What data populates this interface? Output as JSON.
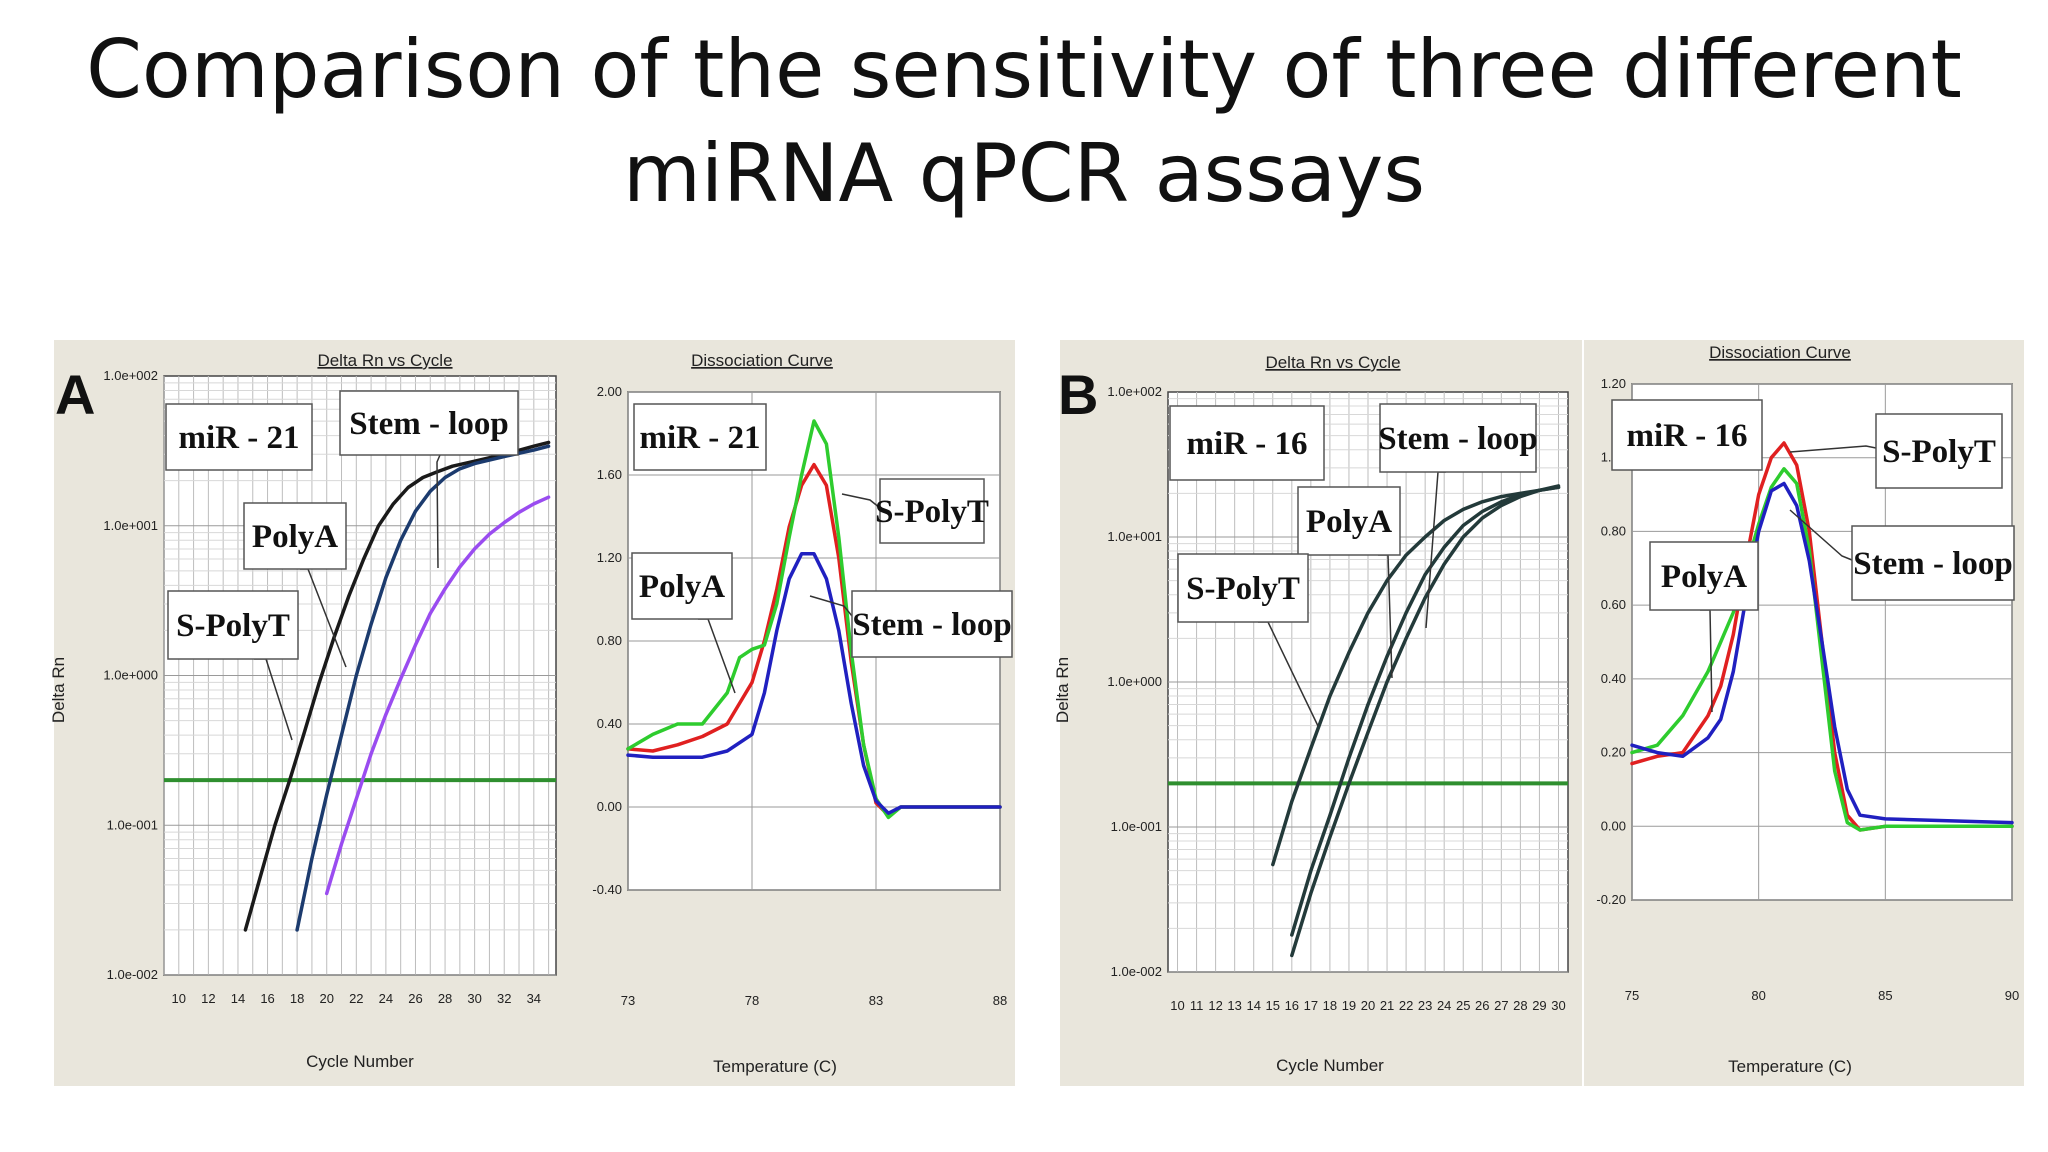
{
  "slide": {
    "title_line1": "Comparison of the sensitivity of three different",
    "title_line2": "miRNA qPCR assays"
  },
  "colors": {
    "background_panel": "#e9e6dc",
    "plot_bg": "#ffffff",
    "grid": "#bdbdbd",
    "threshold": "#2f8f2f",
    "s_polyt": "#e02020",
    "polya": "#2ecc2e",
    "stem_loop": "#2020c0",
    "amp_black": "#1a1a1a",
    "amp_dark": "#233a3a",
    "amp_purple": "#9a4cf0",
    "amp_darkblue": "#1c3b6e"
  },
  "chart_data": [
    {
      "id": "A-amp",
      "type": "line",
      "panel_letter": "A",
      "title": "Delta Rn vs Cycle",
      "xlabel": "Cycle Number",
      "ylabel": "Delta Rn",
      "xlim": [
        9,
        35.5
      ],
      "ylim": [
        0.01,
        100
      ],
      "yscale": "log",
      "xticks": [
        10,
        12,
        14,
        16,
        18,
        20,
        22,
        24,
        26,
        28,
        30,
        32,
        34
      ],
      "ytick_labels": [
        "1.0e-002",
        "1.0e-001",
        "1.0e+000",
        "1.0e+001",
        "1.0e+002"
      ],
      "ytick_values": [
        0.01,
        0.1,
        1,
        10,
        100
      ],
      "threshold": 0.2,
      "series": [
        {
          "color": "#1a1a1a",
          "x": [
            14.5,
            15.5,
            16.5,
            17.5,
            18.5,
            19.5,
            20.5,
            21.5,
            22.5,
            23.5,
            24.5,
            25.5,
            26.5,
            27.5,
            28.5,
            30,
            32,
            34,
            35
          ],
          "y": [
            0.02,
            0.045,
            0.1,
            0.2,
            0.42,
            0.9,
            1.8,
            3.4,
            6,
            10,
            14,
            18,
            21,
            23,
            25,
            27,
            30,
            34,
            36
          ]
        },
        {
          "color": "#1c3b6e",
          "x": [
            18,
            19,
            20,
            21,
            22,
            23,
            24,
            25,
            26,
            27,
            28,
            29,
            30,
            32,
            34,
            35
          ],
          "y": [
            0.02,
            0.06,
            0.16,
            0.4,
            1,
            2.2,
            4.5,
            8,
            12.5,
            17,
            21,
            24,
            26,
            29,
            32,
            34
          ]
        },
        {
          "color": "#9a4cf0",
          "x": [
            20,
            21,
            22,
            23,
            24,
            25,
            26,
            27,
            28,
            29,
            30,
            31,
            32,
            33,
            34,
            35
          ],
          "y": [
            0.035,
            0.075,
            0.15,
            0.3,
            0.55,
            0.95,
            1.6,
            2.6,
            3.8,
            5.3,
            7,
            8.8,
            10.5,
            12.3,
            14,
            15.5
          ]
        }
      ],
      "labels": [
        {
          "text": "miR - 21"
        },
        {
          "text": "Stem - loop"
        },
        {
          "text": "PolyA"
        },
        {
          "text": "S-PolyT"
        }
      ]
    },
    {
      "id": "A-diss",
      "type": "line",
      "title": "Dissociation Curve",
      "xlabel": "Temperature (C)",
      "xlim": [
        73,
        88
      ],
      "ylim": [
        -0.4,
        2.0
      ],
      "xticks": [
        73,
        78,
        83,
        88
      ],
      "xtick_labels": [
        "73",
        "78",
        "83",
        "88"
      ],
      "yticks": [
        -0.4,
        0,
        0.4,
        0.8,
        1.2,
        1.6,
        2.0
      ],
      "ytick_labels": [
        "-0.40",
        "0.00",
        "0.40",
        "0.80",
        "1.20",
        "1.60",
        "2.00"
      ],
      "series": [
        {
          "name": "S-PolyT",
          "color": "#e02020",
          "x": [
            73,
            74,
            75,
            76,
            77,
            78,
            78.5,
            79,
            79.5,
            80,
            80.5,
            81,
            81.5,
            82,
            82.5,
            83,
            83.5,
            84,
            85,
            88
          ],
          "y": [
            0.28,
            0.27,
            0.3,
            0.34,
            0.4,
            0.6,
            0.8,
            1.05,
            1.35,
            1.55,
            1.65,
            1.55,
            1.2,
            0.7,
            0.3,
            0.02,
            -0.04,
            0,
            0,
            0
          ]
        },
        {
          "name": "PolyA",
          "color": "#2ecc2e",
          "x": [
            73,
            74,
            75,
            76,
            77,
            77.5,
            78,
            78.5,
            79,
            79.5,
            80,
            80.5,
            81,
            81.5,
            82,
            82.5,
            83,
            83.5,
            84,
            85,
            88
          ],
          "y": [
            0.28,
            0.35,
            0.4,
            0.4,
            0.55,
            0.72,
            0.76,
            0.78,
            0.98,
            1.3,
            1.6,
            1.86,
            1.75,
            1.3,
            0.75,
            0.3,
            0.04,
            -0.05,
            0,
            0,
            0
          ]
        },
        {
          "name": "Stem - loop",
          "color": "#2020c0",
          "x": [
            73,
            74,
            75,
            76,
            77,
            78,
            78.5,
            79,
            79.5,
            80,
            80.5,
            81,
            81.5,
            82,
            82.5,
            83,
            83.5,
            84,
            85,
            88
          ],
          "y": [
            0.25,
            0.24,
            0.24,
            0.24,
            0.27,
            0.35,
            0.55,
            0.85,
            1.1,
            1.22,
            1.22,
            1.1,
            0.85,
            0.5,
            0.2,
            0.03,
            -0.03,
            0,
            0,
            0
          ]
        }
      ],
      "labels": [
        {
          "text": "miR - 21"
        },
        {
          "text": "S-PolyT"
        },
        {
          "text": "PolyA"
        },
        {
          "text": "Stem - loop"
        }
      ]
    },
    {
      "id": "B-amp",
      "type": "line",
      "panel_letter": "B",
      "title": "Delta Rn vs Cycle",
      "xlabel": "Cycle Number",
      "ylabel": "Delta Rn",
      "xlim": [
        9.5,
        30.5
      ],
      "ylim": [
        0.01,
        100
      ],
      "yscale": "log",
      "xticks": [
        10,
        11,
        12,
        13,
        14,
        15,
        16,
        17,
        18,
        19,
        20,
        21,
        22,
        23,
        24,
        25,
        26,
        27,
        28,
        29,
        30
      ],
      "ytick_labels": [
        "1.0e-002",
        "1.0e-001",
        "1.0e+000",
        "1.0e+001",
        "1.0e+002"
      ],
      "ytick_values": [
        0.01,
        0.1,
        1,
        10,
        100
      ],
      "threshold": 0.2,
      "series": [
        {
          "color": "#233a3a",
          "x": [
            15,
            16,
            17,
            18,
            19,
            20,
            21,
            22,
            23,
            24,
            25,
            26,
            27,
            28,
            29,
            30
          ],
          "y": [
            0.055,
            0.15,
            0.35,
            0.8,
            1.6,
            3,
            5,
            7.5,
            10,
            13,
            15.5,
            17.5,
            19,
            20,
            21,
            22
          ]
        },
        {
          "color": "#233a3a",
          "x": [
            16,
            17,
            18,
            19,
            20,
            21,
            22,
            23,
            24,
            25,
            26,
            27,
            28,
            29,
            30
          ],
          "y": [
            0.018,
            0.05,
            0.12,
            0.3,
            0.7,
            1.5,
            3,
            5.5,
            8.5,
            12,
            15,
            17.5,
            19.5,
            21,
            22
          ]
        },
        {
          "color": "#233a3a",
          "x": [
            16,
            17,
            18,
            19,
            20,
            21,
            22,
            23,
            24,
            25,
            26,
            27,
            28,
            29,
            30
          ],
          "y": [
            0.013,
            0.035,
            0.085,
            0.2,
            0.45,
            1,
            2,
            3.8,
            6.5,
            10,
            13.5,
            16.5,
            19,
            21,
            22.5
          ]
        }
      ],
      "labels": [
        {
          "text": "miR - 16"
        },
        {
          "text": "Stem - loop"
        },
        {
          "text": "PolyA"
        },
        {
          "text": "S-PolyT"
        }
      ]
    },
    {
      "id": "B-diss",
      "type": "line",
      "title": "Dissociation Curve",
      "xlabel": "Temperature (C)",
      "xlim": [
        75,
        90
      ],
      "ylim": [
        -0.2,
        1.2
      ],
      "xticks": [
        75,
        80,
        85,
        90
      ],
      "xtick_labels": [
        "75",
        "80",
        "85",
        "90"
      ],
      "yticks": [
        -0.2,
        0,
        0.2,
        0.4,
        0.6,
        0.8,
        1.0,
        1.2
      ],
      "ytick_labels": [
        "-0.20",
        "0.00",
        "0.20",
        "0.40",
        "0.60",
        "0.80",
        "1.00",
        "1.20"
      ],
      "series": [
        {
          "name": "S-PolyT",
          "color": "#e02020",
          "x": [
            75,
            76,
            77,
            78,
            78.5,
            79,
            79.5,
            80,
            80.5,
            81,
            81.5,
            82,
            82.5,
            83,
            83.5,
            84,
            85,
            90
          ],
          "y": [
            0.17,
            0.19,
            0.2,
            0.3,
            0.38,
            0.52,
            0.72,
            0.9,
            1.0,
            1.04,
            0.98,
            0.8,
            0.5,
            0.2,
            0.03,
            -0.01,
            0,
            0
          ]
        },
        {
          "name": "PolyA",
          "color": "#2ecc2e",
          "x": [
            75,
            76,
            77,
            78,
            78.5,
            79,
            79.5,
            80,
            80.5,
            81,
            81.5,
            82,
            82.5,
            83,
            83.5,
            84,
            85,
            90
          ],
          "y": [
            0.2,
            0.22,
            0.3,
            0.42,
            0.5,
            0.58,
            0.7,
            0.82,
            0.92,
            0.97,
            0.93,
            0.75,
            0.45,
            0.15,
            0.01,
            -0.01,
            0,
            0
          ]
        },
        {
          "name": "Stem - loop",
          "color": "#2020c0",
          "x": [
            75,
            76,
            77,
            78,
            78.5,
            79,
            79.5,
            80,
            80.5,
            81,
            81.5,
            82,
            82.5,
            83,
            83.5,
            84,
            85,
            90
          ],
          "y": [
            0.22,
            0.2,
            0.19,
            0.24,
            0.29,
            0.42,
            0.62,
            0.8,
            0.91,
            0.93,
            0.87,
            0.72,
            0.5,
            0.27,
            0.1,
            0.03,
            0.02,
            0.01
          ]
        }
      ],
      "labels": [
        {
          "text": "miR - 16"
        },
        {
          "text": "S-PolyT"
        },
        {
          "text": "PolyA"
        },
        {
          "text": "Stem - loop"
        }
      ]
    }
  ]
}
